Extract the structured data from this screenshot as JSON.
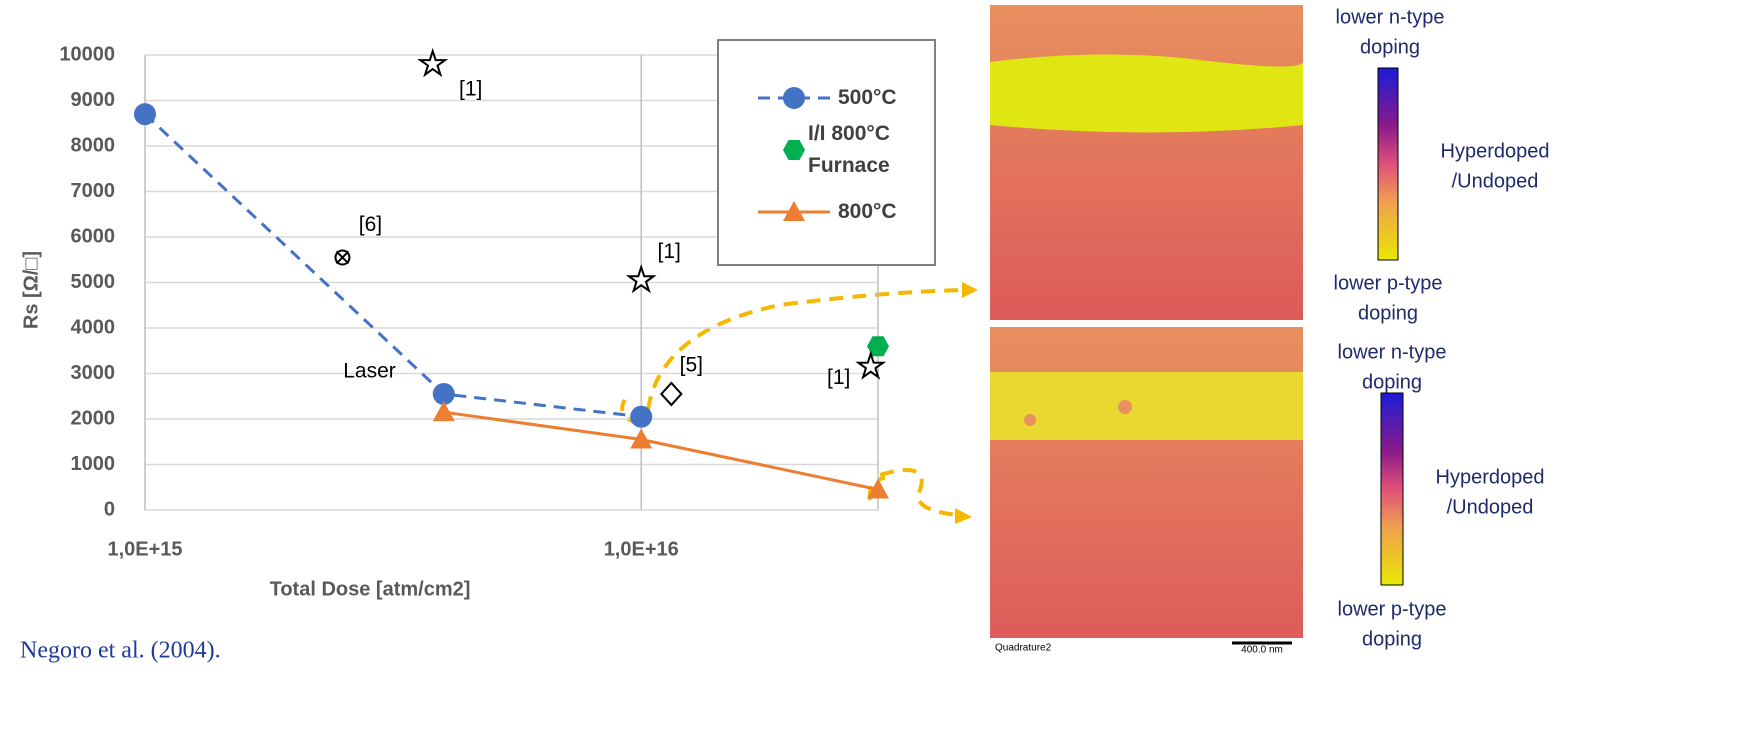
{
  "chart_data": {
    "type": "line",
    "xscale": "log",
    "xlabel": "Total Dose [atm/cm2]",
    "ylabel": "Rs [Ω/□]",
    "xlim": [
      1000000000000000.0,
      3e+16
    ],
    "xticks": [
      {
        "value": 1000000000000000.0,
        "label": "1,0E+15"
      },
      {
        "value": 1e+16,
        "label": "1,0E+16"
      }
    ],
    "ylim": [
      0,
      10000
    ],
    "yticks": [
      0,
      1000,
      2000,
      3000,
      4000,
      5000,
      6000,
      7000,
      8000,
      9000,
      10000
    ],
    "grid": true,
    "series": [
      {
        "name": "500°C",
        "color": "#4472c4",
        "marker": "circle",
        "dashed": true,
        "x": [
          1000000000000000.0,
          4000000000000000.0,
          1e+16
        ],
        "values": [
          8700,
          2550,
          2050
        ]
      },
      {
        "name": "I/I 800°C Furnace",
        "color": "#00b050",
        "marker": "hexagon",
        "dashed": false,
        "x": [
          3e+16
        ],
        "values": [
          3600
        ]
      },
      {
        "name": "800°C",
        "color": "#ed7d31",
        "marker": "triangle",
        "dashed": false,
        "x": [
          4000000000000000.0,
          1e+16,
          3e+16
        ],
        "values": [
          2150,
          1550,
          450
        ]
      }
    ],
    "references": [
      {
        "label": "[1]",
        "marker": "star",
        "x": 3800000000000000.0,
        "y": 9800
      },
      {
        "label": "[6]",
        "marker": "cross",
        "x": 2500000000000000.0,
        "y": 5550
      },
      {
        "label": "[1]",
        "marker": "star",
        "x": 1e+16,
        "y": 5050
      },
      {
        "label": "[5]",
        "marker": "diamond",
        "x": 1.15e+16,
        "y": 2550
      },
      {
        "label": "[1]",
        "marker": "star",
        "x": 2.9e+16,
        "y": 3150
      }
    ],
    "annotations": [
      {
        "text": "Laser"
      }
    ]
  },
  "caption": "Negoro et al. (2004).",
  "maps": [
    {
      "top_label": [
        "lower n-type",
        "doping"
      ],
      "mid_label": [
        "Hyperdoped",
        "/Undoped"
      ],
      "bottom_label": [
        "lower p-type",
        "doping"
      ]
    },
    {
      "top_label": [
        "lower n-type",
        "doping"
      ],
      "mid_label": [
        "Hyperdoped",
        "/Undoped"
      ],
      "bottom_label": [
        "lower p-type",
        "doping"
      ],
      "footer": "Quadrature2",
      "scale_bar": "400.0 nm"
    }
  ]
}
